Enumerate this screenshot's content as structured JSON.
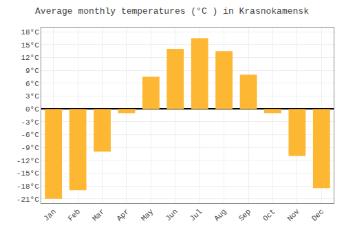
{
  "chart_data": {
    "type": "bar",
    "title": "Average monthly temperatures (°C ) in Krasnokamensk",
    "categories": [
      "Jan",
      "Feb",
      "Mar",
      "Apr",
      "May",
      "Jun",
      "Jul",
      "Aug",
      "Sep",
      "Oct",
      "Nov",
      "Dec"
    ],
    "values": [
      -21,
      -19,
      -10,
      -1,
      7.5,
      14,
      16.5,
      13.5,
      8,
      -1,
      -11,
      -18.5
    ],
    "color": "#FDB733",
    "ylim": [
      -22,
      19
    ],
    "yticks": [
      {
        "value": -21,
        "label": "-21°C"
      },
      {
        "value": -18,
        "label": "-18°C"
      },
      {
        "value": -15,
        "label": "-15°C"
      },
      {
        "value": -12,
        "label": "-12°C"
      },
      {
        "value": -9,
        "label": "-9°C"
      },
      {
        "value": -6,
        "label": "-6°C"
      },
      {
        "value": -3,
        "label": "-3°C"
      },
      {
        "value": 0,
        "label": "0°C"
      },
      {
        "value": 3,
        "label": "3°C"
      },
      {
        "value": 6,
        "label": "6°C"
      },
      {
        "value": 9,
        "label": "9°C"
      },
      {
        "value": 12,
        "label": "12°C"
      },
      {
        "value": 15,
        "label": "15°C"
      },
      {
        "value": 18,
        "label": "18°C"
      }
    ],
    "grid": true
  }
}
